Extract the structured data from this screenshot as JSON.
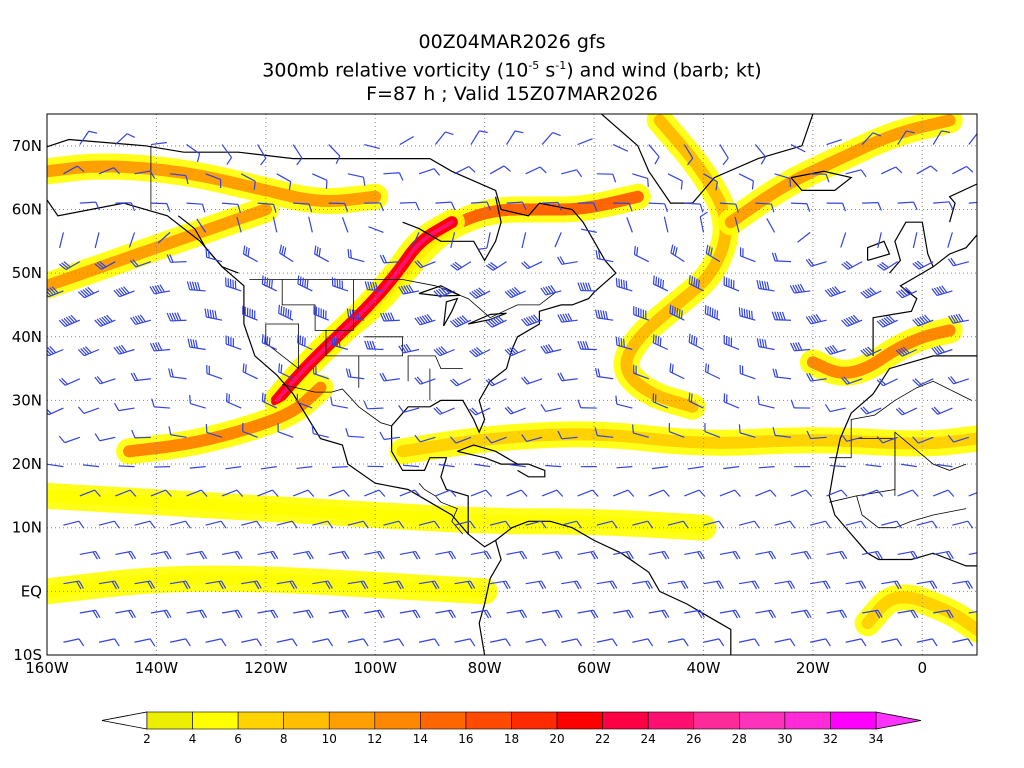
{
  "title": {
    "line1": "00Z04MAR2026 gfs",
    "line2_pre": "300mb relative vorticity (10",
    "line2_exp1": "-5",
    "line2_mid": " s",
    "line2_exp2": "-1",
    "line2_post": ") and wind (barb; kt)",
    "line3": "F=87 h ; Valid 15Z07MAR2026"
  },
  "map": {
    "lon_range": [
      -160,
      10
    ],
    "lat_range": [
      -10,
      75
    ],
    "lat_ticks": [
      {
        "value": 70,
        "label": "70N"
      },
      {
        "value": 60,
        "label": "60N"
      },
      {
        "value": 50,
        "label": "50N"
      },
      {
        "value": 40,
        "label": "40N"
      },
      {
        "value": 30,
        "label": "30N"
      },
      {
        "value": 20,
        "label": "20N"
      },
      {
        "value": 10,
        "label": "10N"
      },
      {
        "value": 0,
        "label": "EQ"
      },
      {
        "value": -10,
        "label": "10S"
      }
    ],
    "lon_ticks": [
      {
        "value": -160,
        "label": "160W"
      },
      {
        "value": -140,
        "label": "140W"
      },
      {
        "value": -120,
        "label": "120W"
      },
      {
        "value": -100,
        "label": "100W"
      },
      {
        "value": -80,
        "label": "80W"
      },
      {
        "value": -60,
        "label": "60W"
      },
      {
        "value": -40,
        "label": "40W"
      },
      {
        "value": -20,
        "label": "20W"
      },
      {
        "value": 0,
        "label": "0"
      }
    ],
    "gridlines": "dotted",
    "colors": {
      "barb": "#3344dd",
      "coast": "#000000"
    }
  },
  "vorticity_bands": [
    {
      "level": 10,
      "points": [
        [
          -160,
          66
        ],
        [
          -150,
          67
        ],
        [
          -135,
          66
        ],
        [
          -120,
          63
        ],
        [
          -110,
          61
        ],
        [
          -100,
          62
        ]
      ]
    },
    {
      "level": 14,
      "points": [
        [
          -117,
          31
        ],
        [
          -112,
          36
        ],
        [
          -106,
          41
        ],
        [
          -100,
          45
        ],
        [
          -95,
          50
        ],
        [
          -90,
          55
        ],
        [
          -85,
          58
        ],
        [
          -78,
          60
        ],
        [
          -70,
          60
        ],
        [
          -62,
          60
        ],
        [
          -52,
          62
        ]
      ]
    },
    {
      "level": 20,
      "points": [
        [
          -118,
          30
        ],
        [
          -113,
          35
        ],
        [
          -107,
          40
        ],
        [
          -101,
          45
        ],
        [
          -96,
          50
        ],
        [
          -92,
          55
        ],
        [
          -86,
          58
        ]
      ]
    },
    {
      "level": 12,
      "points": [
        [
          -145,
          22
        ],
        [
          -135,
          23
        ],
        [
          -125,
          25
        ],
        [
          -115,
          28
        ],
        [
          -110,
          32
        ]
      ]
    },
    {
      "level": 10,
      "points": [
        [
          -160,
          48
        ],
        [
          -150,
          51
        ],
        [
          -140,
          54
        ],
        [
          -130,
          57
        ],
        [
          -120,
          60
        ]
      ]
    },
    {
      "level": 8,
      "points": [
        [
          -48,
          74
        ],
        [
          -40,
          66
        ],
        [
          -35,
          58
        ],
        [
          -38,
          50
        ],
        [
          -45,
          45
        ],
        [
          -52,
          40
        ],
        [
          -55,
          35
        ],
        [
          -50,
          31
        ],
        [
          -42,
          29
        ]
      ]
    },
    {
      "level": 10,
      "points": [
        [
          -35,
          58
        ],
        [
          -25,
          64
        ],
        [
          -15,
          68
        ],
        [
          -5,
          72
        ],
        [
          5,
          74
        ]
      ]
    },
    {
      "level": 12,
      "points": [
        [
          -20,
          36
        ],
        [
          -15,
          34
        ],
        [
          -10,
          35
        ],
        [
          -5,
          38
        ],
        [
          0,
          40
        ],
        [
          5,
          41
        ]
      ]
    },
    {
      "level": 6,
      "points": [
        [
          -95,
          22
        ],
        [
          -80,
          24
        ],
        [
          -60,
          25
        ],
        [
          -40,
          23
        ],
        [
          -20,
          24
        ],
        [
          0,
          23
        ],
        [
          10,
          24
        ]
      ]
    },
    {
      "level": 4,
      "points": [
        [
          -160,
          15
        ],
        [
          -140,
          14
        ],
        [
          -120,
          13
        ],
        [
          -100,
          12
        ],
        [
          -80,
          11
        ],
        [
          -60,
          11
        ],
        [
          -40,
          10
        ]
      ]
    },
    {
      "level": 4,
      "points": [
        [
          -160,
          0
        ],
        [
          -140,
          2
        ],
        [
          -120,
          2
        ],
        [
          -100,
          1
        ],
        [
          -80,
          0
        ]
      ]
    },
    {
      "level": 6,
      "points": [
        [
          -10,
          -5
        ],
        [
          -5,
          0
        ],
        [
          5,
          -3
        ],
        [
          10,
          -6
        ]
      ]
    }
  ],
  "colorbar": {
    "values": [
      "2",
      "4",
      "6",
      "8",
      "10",
      "12",
      "14",
      "16",
      "18",
      "20",
      "22",
      "24",
      "26",
      "28",
      "30",
      "32",
      "34"
    ],
    "colors": [
      "#ecf000",
      "#ffff00",
      "#ffd200",
      "#ffbf00",
      "#ffa000",
      "#ff8800",
      "#ff6600",
      "#ff4a00",
      "#ff2a00",
      "#ff0000",
      "#ff0044",
      "#ff1070",
      "#ff2a9a",
      "#ff33bb",
      "#ff2ad8",
      "#ff00ff"
    ]
  }
}
